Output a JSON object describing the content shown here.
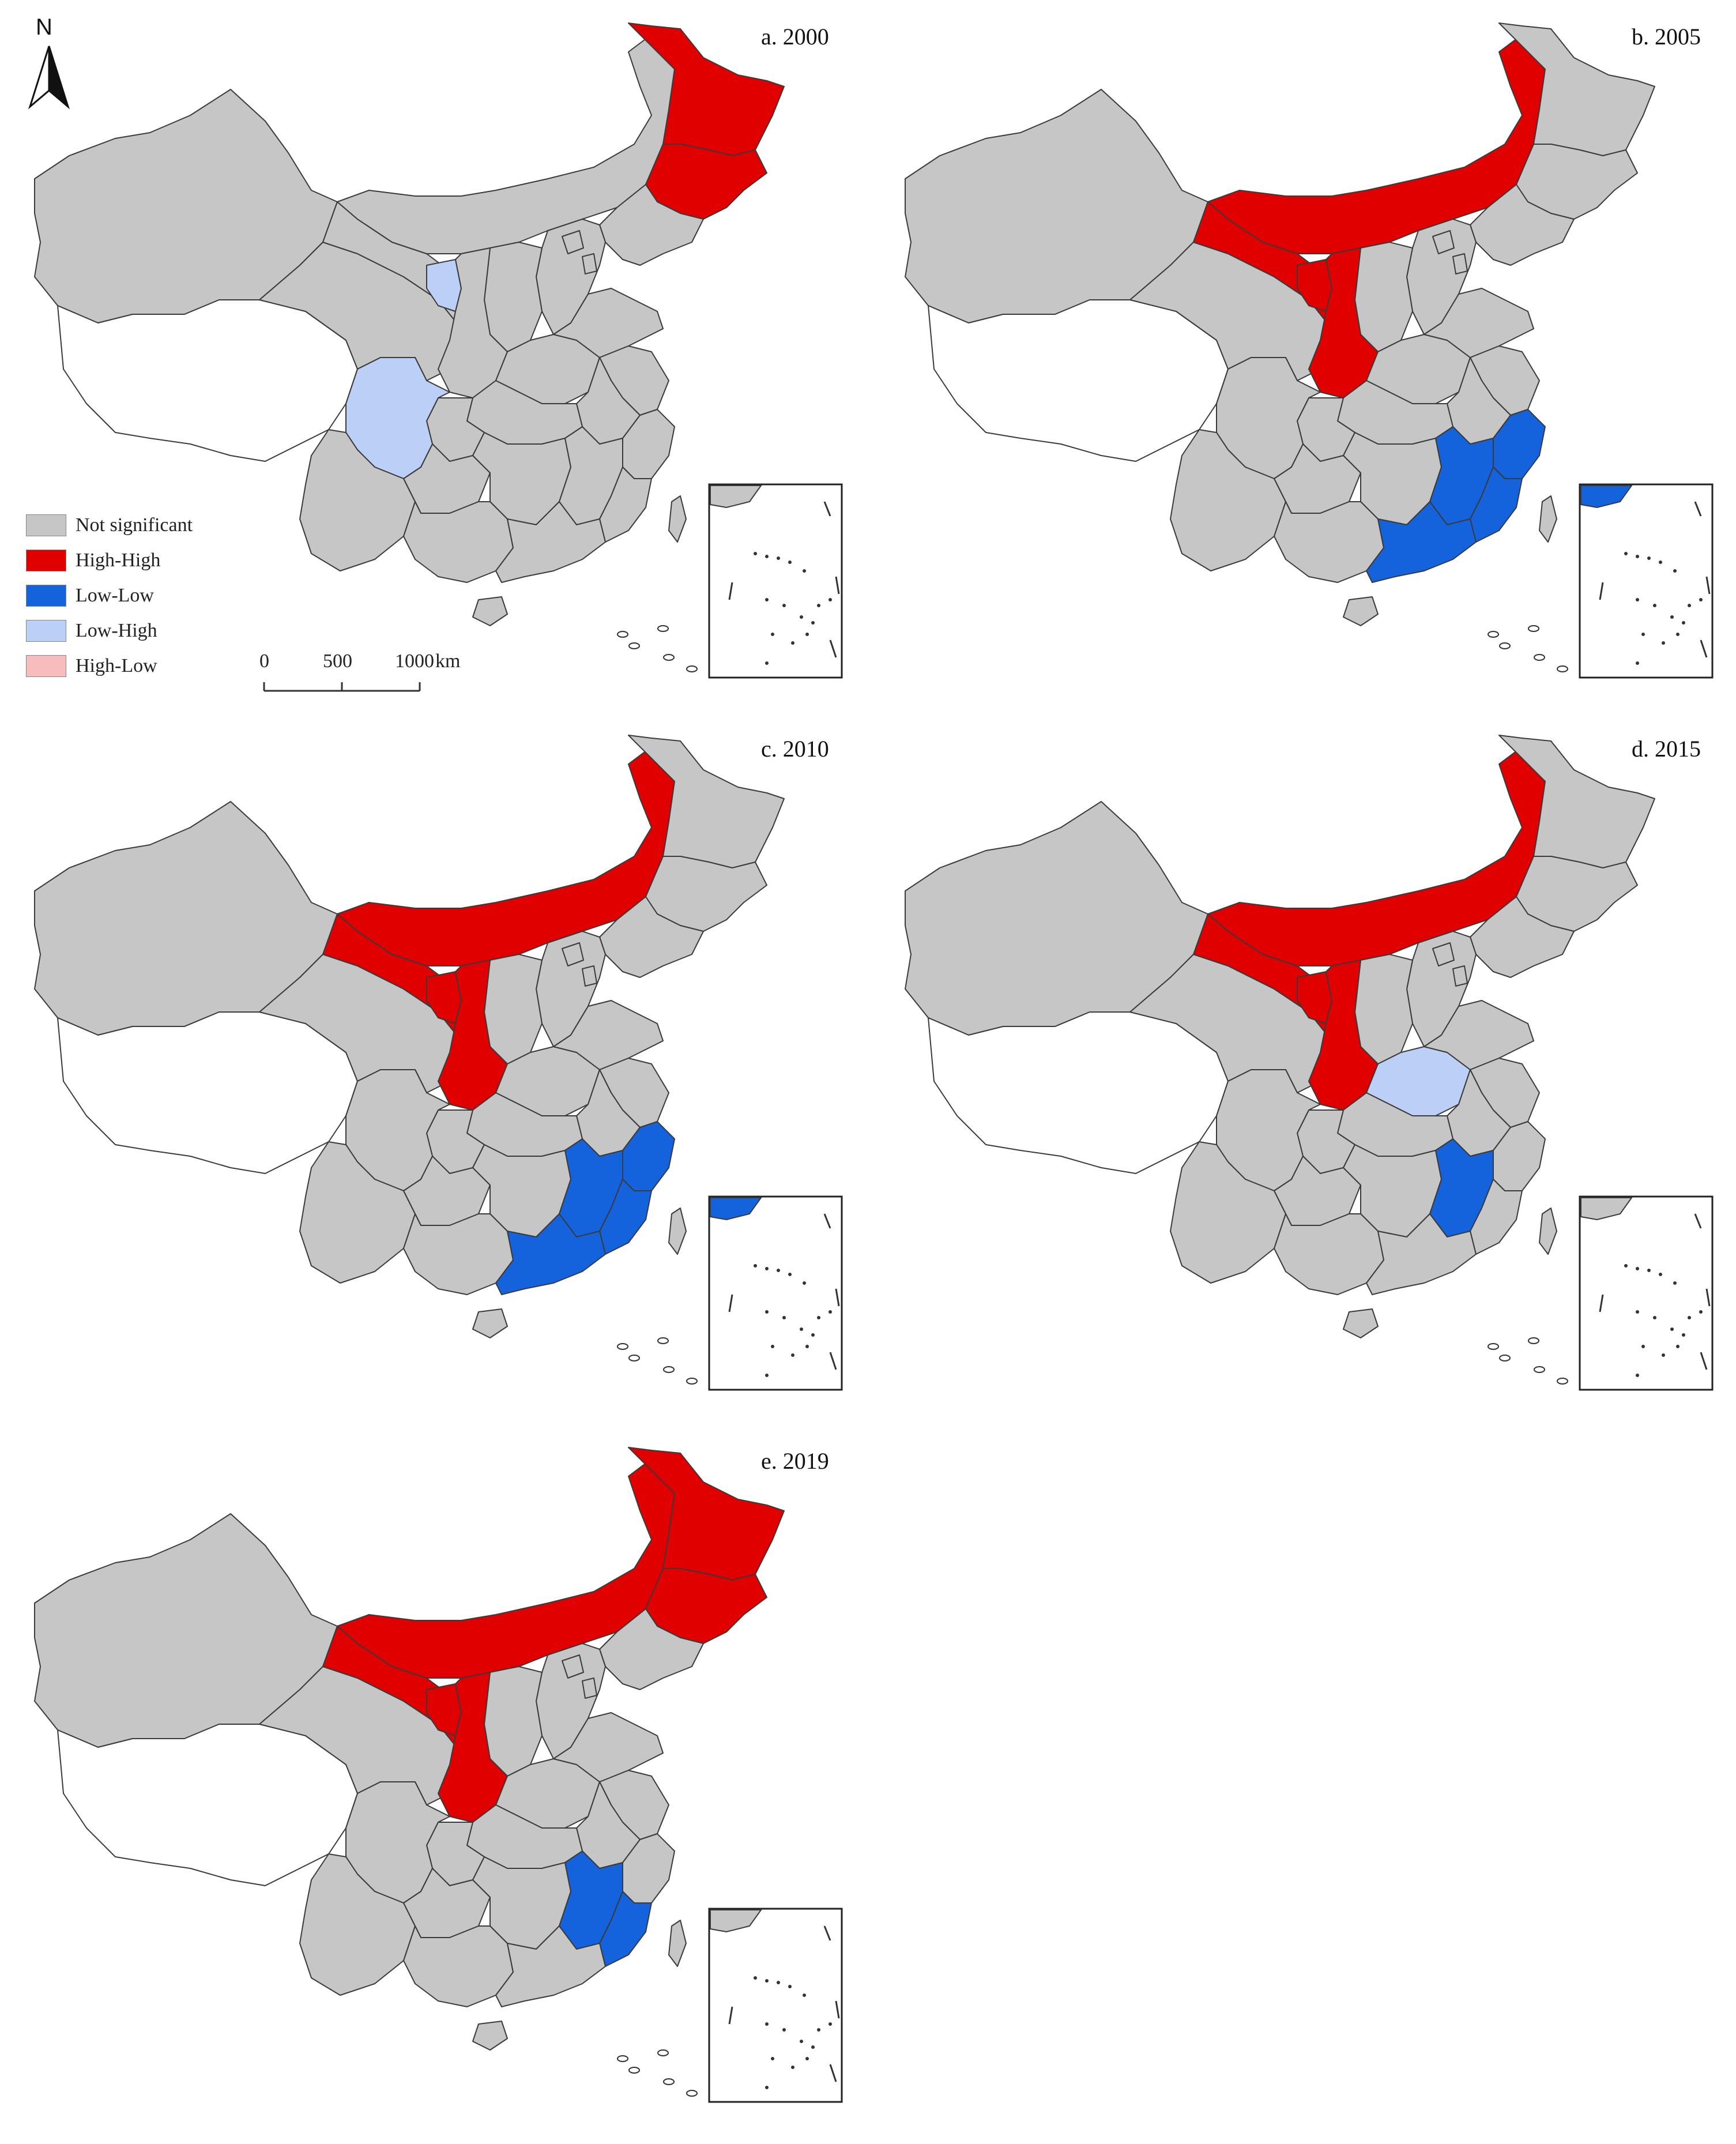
{
  "colors": {
    "not_significant": "#c6c6c6",
    "high_high": "#e00000",
    "low_low": "#1463dc",
    "low_high": "#bcd0f7",
    "high_low": "#f8bcbc",
    "tibet": "#ffffff",
    "stroke": "#3a3a3a"
  },
  "north_arrow": {
    "label": "N",
    "icon": "north-arrow-icon"
  },
  "legend": {
    "items": [
      {
        "key": "not_significant",
        "label": "Not significant"
      },
      {
        "key": "high_high",
        "label": "High-High"
      },
      {
        "key": "low_low",
        "label": "Low-Low"
      },
      {
        "key": "low_high",
        "label": "Low-High"
      },
      {
        "key": "high_low",
        "label": "High-Low"
      }
    ]
  },
  "scale": {
    "ticks": [
      "0",
      "500",
      "1000"
    ],
    "unit": "km"
  },
  "panels": [
    {
      "label": "a. 2000",
      "regions": {
        "heilongjiang": "high_high",
        "jilin": "high_high",
        "liaoning": "not_significant",
        "inner_mongolia": "not_significant",
        "xinjiang": "not_significant",
        "qinghai": "not_significant",
        "gansu": "not_significant",
        "ningxia": "low_high",
        "shaanxi": "not_significant",
        "shanxi": "not_significant",
        "hebei": "not_significant",
        "beijing": "not_significant",
        "tianjin": "not_significant",
        "shandong": "not_significant",
        "henan": "not_significant",
        "jiangsu": "not_significant",
        "anhui": "not_significant",
        "hubei": "not_significant",
        "sichuan": "low_high",
        "chongqing": "not_significant",
        "yunnan": "not_significant",
        "guizhou": "not_significant",
        "hunan": "not_significant",
        "jiangxi": "not_significant",
        "zhejiang": "not_significant",
        "fujian": "not_significant",
        "guangxi": "not_significant",
        "guangdong": "not_significant",
        "hainan": "not_significant",
        "taiwan": "not_significant"
      }
    },
    {
      "label": "b. 2005",
      "regions": {
        "heilongjiang": "not_significant",
        "jilin": "not_significant",
        "liaoning": "not_significant",
        "inner_mongolia": "high_high",
        "xinjiang": "not_significant",
        "qinghai": "not_significant",
        "gansu": "high_high",
        "ningxia": "high_high",
        "shaanxi": "high_high",
        "shanxi": "not_significant",
        "hebei": "not_significant",
        "beijing": "not_significant",
        "tianjin": "not_significant",
        "shandong": "not_significant",
        "henan": "not_significant",
        "jiangsu": "not_significant",
        "anhui": "not_significant",
        "hubei": "not_significant",
        "sichuan": "not_significant",
        "chongqing": "not_significant",
        "yunnan": "not_significant",
        "guizhou": "not_significant",
        "hunan": "not_significant",
        "jiangxi": "low_low",
        "zhejiang": "low_low",
        "fujian": "low_low",
        "guangxi": "not_significant",
        "guangdong": "low_low",
        "hainan": "not_significant",
        "taiwan": "not_significant"
      }
    },
    {
      "label": "c. 2010",
      "regions": {
        "heilongjiang": "not_significant",
        "jilin": "not_significant",
        "liaoning": "not_significant",
        "inner_mongolia": "high_high",
        "xinjiang": "not_significant",
        "qinghai": "not_significant",
        "gansu": "high_high",
        "ningxia": "high_high",
        "shaanxi": "high_high",
        "shanxi": "not_significant",
        "hebei": "not_significant",
        "beijing": "not_significant",
        "tianjin": "not_significant",
        "shandong": "not_significant",
        "henan": "not_significant",
        "jiangsu": "not_significant",
        "anhui": "not_significant",
        "hubei": "not_significant",
        "sichuan": "not_significant",
        "chongqing": "not_significant",
        "yunnan": "not_significant",
        "guizhou": "not_significant",
        "hunan": "not_significant",
        "jiangxi": "low_low",
        "zhejiang": "low_low",
        "fujian": "low_low",
        "guangxi": "not_significant",
        "guangdong": "low_low",
        "hainan": "not_significant",
        "taiwan": "not_significant"
      }
    },
    {
      "label": "d. 2015",
      "regions": {
        "heilongjiang": "not_significant",
        "jilin": "not_significant",
        "liaoning": "not_significant",
        "inner_mongolia": "high_high",
        "xinjiang": "not_significant",
        "qinghai": "not_significant",
        "gansu": "high_high",
        "ningxia": "high_high",
        "shaanxi": "high_high",
        "shanxi": "not_significant",
        "hebei": "not_significant",
        "beijing": "not_significant",
        "tianjin": "not_significant",
        "shandong": "not_significant",
        "henan": "low_high",
        "jiangsu": "not_significant",
        "anhui": "not_significant",
        "hubei": "not_significant",
        "sichuan": "not_significant",
        "chongqing": "not_significant",
        "yunnan": "not_significant",
        "guizhou": "not_significant",
        "hunan": "not_significant",
        "jiangxi": "low_low",
        "zhejiang": "not_significant",
        "fujian": "not_significant",
        "guangxi": "not_significant",
        "guangdong": "not_significant",
        "hainan": "not_significant",
        "taiwan": "not_significant"
      }
    },
    {
      "label": "e. 2019",
      "regions": {
        "heilongjiang": "high_high",
        "jilin": "high_high",
        "liaoning": "not_significant",
        "inner_mongolia": "high_high",
        "xinjiang": "not_significant",
        "qinghai": "not_significant",
        "gansu": "high_high",
        "ningxia": "high_high",
        "shaanxi": "high_high",
        "shanxi": "not_significant",
        "hebei": "not_significant",
        "beijing": "not_significant",
        "tianjin": "not_significant",
        "shandong": "not_significant",
        "henan": "not_significant",
        "jiangsu": "not_significant",
        "anhui": "not_significant",
        "hubei": "not_significant",
        "sichuan": "not_significant",
        "chongqing": "not_significant",
        "yunnan": "not_significant",
        "guizhou": "not_significant",
        "hunan": "not_significant",
        "jiangxi": "low_low",
        "zhejiang": "not_significant",
        "fujian": "low_low",
        "guangxi": "not_significant",
        "guangdong": "not_significant",
        "hainan": "not_significant",
        "taiwan": "not_significant"
      }
    }
  ]
}
